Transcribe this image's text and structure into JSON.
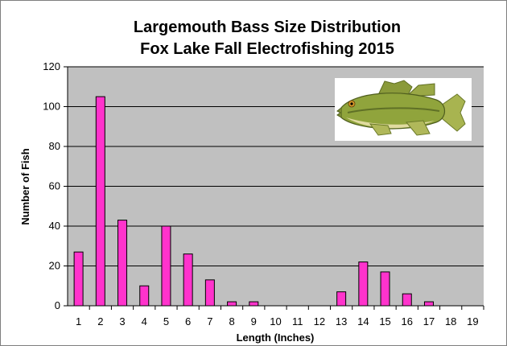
{
  "chart_data": {
    "type": "bar",
    "title": "Largemouth Bass Size Distribution",
    "subtitle": "Fox Lake Fall Electrofishing 2015",
    "xlabel": "Length (Inches)",
    "ylabel": "Number of Fish",
    "categories": [
      "1",
      "2",
      "3",
      "4",
      "5",
      "6",
      "7",
      "8",
      "9",
      "10",
      "11",
      "12",
      "13",
      "14",
      "15",
      "16",
      "17",
      "18",
      "19"
    ],
    "values": [
      27,
      105,
      43,
      10,
      40,
      26,
      13,
      2,
      2,
      0,
      0,
      0,
      7,
      22,
      17,
      6,
      2,
      0,
      0
    ],
    "ylim": [
      0,
      120
    ],
    "yticks": [
      0,
      20,
      40,
      60,
      80,
      100,
      120
    ],
    "grid": true,
    "legend": "none",
    "colors": {
      "bar_fill": "#ff33cc",
      "bar_stroke": "#000000",
      "plot_bg": "#c0c0c0",
      "grid": "#000000"
    },
    "image": "largemouth-bass-fish"
  }
}
